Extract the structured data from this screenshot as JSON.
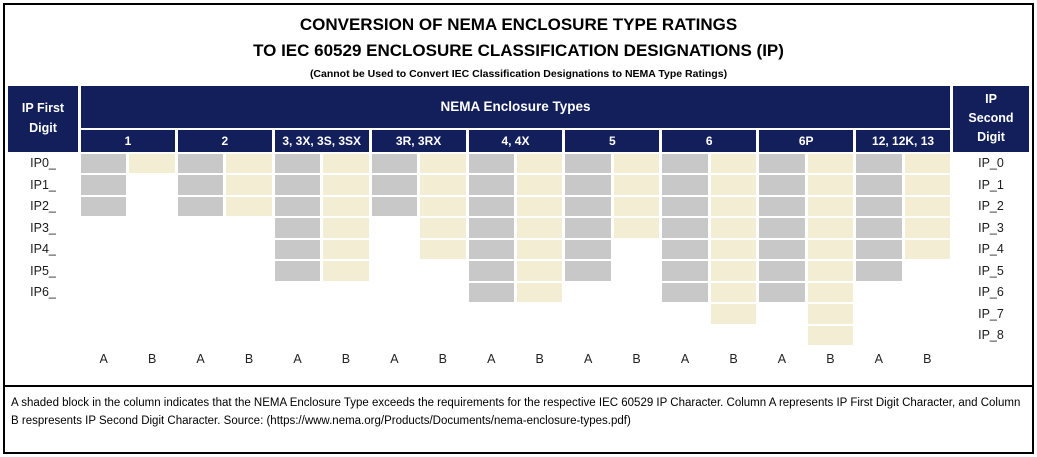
{
  "title": {
    "line1": "CONVERSION OF NEMA ENCLOSURE TYPE RATINGS",
    "line2": "TO IEC 60529 ENCLOSURE CLASSIFICATION DESIGNATIONS (IP)",
    "subtitle": "(Cannot be Used to Convert IEC Classification Designations to NEMA Type Ratings)"
  },
  "header": {
    "left_line1": "IP First",
    "left_line2": "Digit",
    "center": "NEMA Enclosure Types",
    "right_line1": "IP",
    "right_line2": "Second",
    "right_line3": "Digit",
    "groups": [
      "1",
      "2",
      "3, 3X, 3S, 3SX",
      "3R, 3RX",
      "4, 4X",
      "5",
      "6",
      "6P",
      "12, 12K, 13"
    ]
  },
  "grid": {
    "left_labels": [
      "IP0_",
      "IP1_",
      "IP2_",
      "IP3_",
      "IP4_",
      "IP5_",
      "IP6_",
      "",
      ""
    ],
    "right_labels": [
      "IP_0",
      "IP_1",
      "IP_2",
      "IP_3",
      "IP_4",
      "IP_5",
      "IP_6",
      "IP_7",
      "IP_8"
    ],
    "sub_labels": [
      "A",
      "B",
      "A",
      "B",
      "A",
      "B",
      "A",
      "B",
      "A",
      "B",
      "A",
      "B",
      "A",
      "B",
      "A",
      "B",
      "A",
      "B"
    ],
    "rows": [
      [
        "g",
        "c",
        "g",
        "c",
        "g",
        "c",
        "g",
        "c",
        "g",
        "c",
        "g",
        "c",
        "g",
        "c",
        "g",
        "c",
        "g",
        "c"
      ],
      [
        "g",
        "",
        "g",
        "c",
        "g",
        "c",
        "g",
        "c",
        "g",
        "c",
        "g",
        "c",
        "g",
        "c",
        "g",
        "c",
        "g",
        "c"
      ],
      [
        "g",
        "",
        "g",
        "c",
        "g",
        "c",
        "g",
        "c",
        "g",
        "c",
        "g",
        "c",
        "g",
        "c",
        "g",
        "c",
        "g",
        "c"
      ],
      [
        "",
        "",
        "",
        "",
        "g",
        "c",
        "",
        "c",
        "g",
        "c",
        "g",
        "c",
        "g",
        "c",
        "g",
        "c",
        "g",
        "c"
      ],
      [
        "",
        "",
        "",
        "",
        "g",
        "c",
        "",
        "c",
        "g",
        "c",
        "g",
        "",
        "g",
        "c",
        "g",
        "c",
        "g",
        "c"
      ],
      [
        "",
        "",
        "",
        "",
        "g",
        "c",
        "",
        "",
        "g",
        "c",
        "g",
        "",
        "g",
        "c",
        "g",
        "c",
        "g",
        ""
      ],
      [
        "",
        "",
        "",
        "",
        "",
        "",
        "",
        "",
        "g",
        "c",
        "",
        "",
        "g",
        "c",
        "g",
        "c",
        "",
        ""
      ],
      [
        "",
        "",
        "",
        "",
        "",
        "",
        "",
        "",
        "",
        "",
        "",
        "",
        "",
        "c",
        "",
        "c",
        "",
        ""
      ],
      [
        "",
        "",
        "",
        "",
        "",
        "",
        "",
        "",
        "",
        "",
        "",
        "",
        "",
        "",
        "",
        "c",
        "",
        ""
      ]
    ],
    "cell_colors": {
      "g": "#c8c8c8",
      "c": "#f2edd3",
      "empty": "#ffffff"
    }
  },
  "accent_colors": {
    "header_navy": "#121f5a",
    "header_text": "#ffffff"
  },
  "footnote": "A shaded block in the column indicates that the NEMA Enclosure Type exceeds the requirements for the respective IEC 60529 IP Character. Column A represents IP First Digit Character, and Column B respresents IP Second Digit Character. Source: (https://www.nema.org/Products/Documents/nema-enclosure-types.pdf)"
}
